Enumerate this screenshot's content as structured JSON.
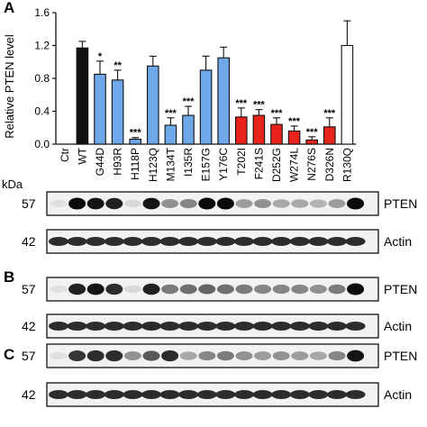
{
  "panels": [
    "A",
    "B",
    "C"
  ],
  "kda_label": "kDa",
  "chart_data": {
    "type": "bar",
    "ylabel": "Relative PTEN level",
    "ylim": [
      0,
      1.6
    ],
    "yticks": [
      "0.0",
      "0.4",
      "0.8",
      "1.2",
      "1.6"
    ],
    "grid": false,
    "categories": [
      "Ctr",
      "WT",
      "G44D",
      "H93R",
      "H118P",
      "H123Q",
      "M134T",
      "I135R",
      "E157G",
      "Y176C",
      "T202I",
      "F241S",
      "D252G",
      "W274L",
      "N276S",
      "D326N",
      "R130Q"
    ],
    "values": [
      0,
      1.17,
      0.85,
      0.78,
      0.06,
      0.95,
      0.23,
      0.35,
      0.9,
      1.05,
      0.33,
      0.35,
      0.24,
      0.16,
      0.05,
      0.21,
      1.2
    ],
    "errors": [
      0,
      0.08,
      0.16,
      0.12,
      0.02,
      0.12,
      0.09,
      0.11,
      0.17,
      0.13,
      0.11,
      0.07,
      0.08,
      0.06,
      0.04,
      0.11,
      0.3
    ],
    "significance": [
      "",
      "",
      "*",
      "**",
      "***",
      "",
      "***",
      "***",
      "",
      "",
      "***",
      "***",
      "***",
      "***",
      "***",
      "***",
      ""
    ],
    "colors": {
      "black": "#111111",
      "blue": "#6fa8e8",
      "red": "#e8231c",
      "white": "#ffffff"
    },
    "bar_color_keys": [
      "black",
      "black",
      "blue",
      "blue",
      "blue",
      "blue",
      "blue",
      "blue",
      "blue",
      "blue",
      "red",
      "red",
      "red",
      "red",
      "red",
      "red",
      "white"
    ]
  },
  "blots": [
    {
      "panel": "A",
      "rows": [
        {
          "mw": "57",
          "protein": "PTEN",
          "intensity": [
            0.05,
            1.0,
            0.95,
            0.9,
            0.08,
            0.95,
            0.4,
            0.45,
            1.0,
            1.0,
            0.35,
            0.4,
            0.3,
            0.3,
            0.25,
            0.35,
            1.0
          ]
        },
        {
          "mw": "42",
          "protein": "Actin",
          "intensity": [
            0.85,
            0.85,
            0.85,
            0.85,
            0.85,
            0.85,
            0.85,
            0.85,
            0.85,
            0.85,
            0.85,
            0.85,
            0.85,
            0.85,
            0.85,
            0.85,
            0.85
          ]
        }
      ]
    },
    {
      "panel": "B",
      "rows": [
        {
          "mw": "57",
          "protein": "PTEN",
          "intensity": [
            0.05,
            0.9,
            0.95,
            0.85,
            0.08,
            0.9,
            0.5,
            0.55,
            0.6,
            0.55,
            0.5,
            0.45,
            0.45,
            0.45,
            0.4,
            0.5,
            1.0
          ]
        },
        {
          "mw": "42",
          "protein": "Actin",
          "intensity": [
            0.85,
            0.85,
            0.85,
            0.85,
            0.85,
            0.85,
            0.85,
            0.85,
            0.85,
            0.85,
            0.85,
            0.85,
            0.85,
            0.85,
            0.85,
            0.85,
            0.85
          ]
        }
      ]
    },
    {
      "panel": "C",
      "rows": [
        {
          "mw": "57",
          "protein": "PTEN",
          "intensity": [
            0.05,
            0.8,
            0.85,
            0.85,
            0.4,
            0.65,
            0.85,
            0.3,
            0.45,
            0.5,
            0.4,
            0.35,
            0.4,
            0.35,
            0.3,
            0.45,
            0.95
          ]
        },
        {
          "mw": "42",
          "protein": "Actin",
          "intensity": [
            0.85,
            0.85,
            0.85,
            0.85,
            0.85,
            0.85,
            0.85,
            0.85,
            0.85,
            0.85,
            0.85,
            0.85,
            0.85,
            0.85,
            0.85,
            0.85,
            0.85
          ]
        }
      ]
    }
  ]
}
